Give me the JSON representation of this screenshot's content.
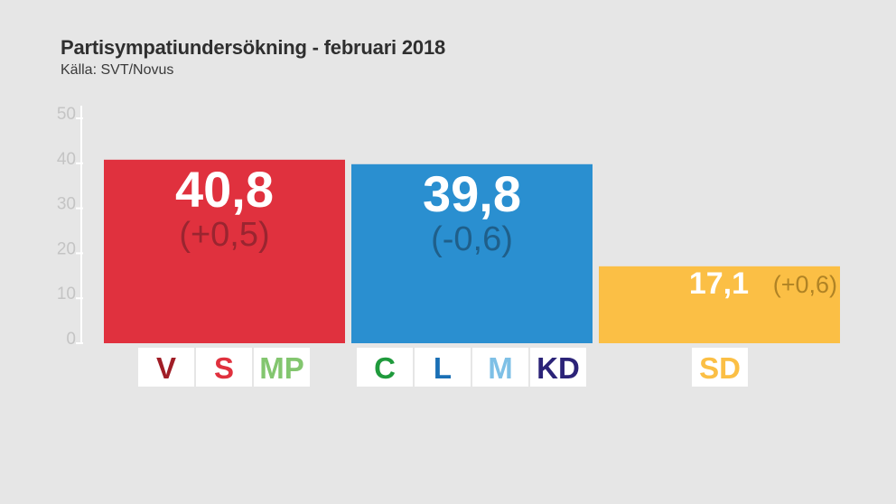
{
  "header": {
    "title": "Partisympatiundersökning - februari 2018",
    "source": "Källa: SVT/Novus"
  },
  "colors": {
    "background": "#e6e6e6",
    "axis_tick_text": "#c4c4c4",
    "label_box": "#ffffff"
  },
  "chart_data": {
    "type": "bar",
    "title": "Partisympatiundersökning - februari 2018",
    "subtitle": "Källa: SVT/Novus",
    "xlabel": "",
    "ylabel": "",
    "ylim": [
      0,
      50
    ],
    "yticks": [
      "0",
      "10",
      "20",
      "30",
      "40",
      "50"
    ],
    "grid": false,
    "categories": [
      "V S MP",
      "C L M KD",
      "SD"
    ],
    "series": [
      {
        "values": [
          40.8,
          39.8,
          17.1
        ],
        "value_labels": [
          "40,8",
          "39,8",
          "17,1"
        ],
        "change_labels": [
          "(+0,5)",
          "(-0,6)",
          "(+0,6)"
        ],
        "colors": [
          "#e0313e",
          "#2a8fd0",
          "#fbbf45"
        ],
        "change_colors": [
          "#9a2530",
          "#1f5f8a",
          "#b08325"
        ]
      }
    ],
    "parties": [
      [
        {
          "label": "V",
          "color": "#a01d26"
        },
        {
          "label": "S",
          "color": "#e0313e"
        },
        {
          "label": "MP",
          "color": "#83c66f"
        }
      ],
      [
        {
          "label": "C",
          "color": "#1f9a3c"
        },
        {
          "label": "L",
          "color": "#1a6fb5"
        },
        {
          "label": "M",
          "color": "#7ec0e6"
        },
        {
          "label": "KD",
          "color": "#2b2378"
        }
      ],
      [
        {
          "label": "SD",
          "color": "#fbbf45"
        }
      ]
    ]
  }
}
